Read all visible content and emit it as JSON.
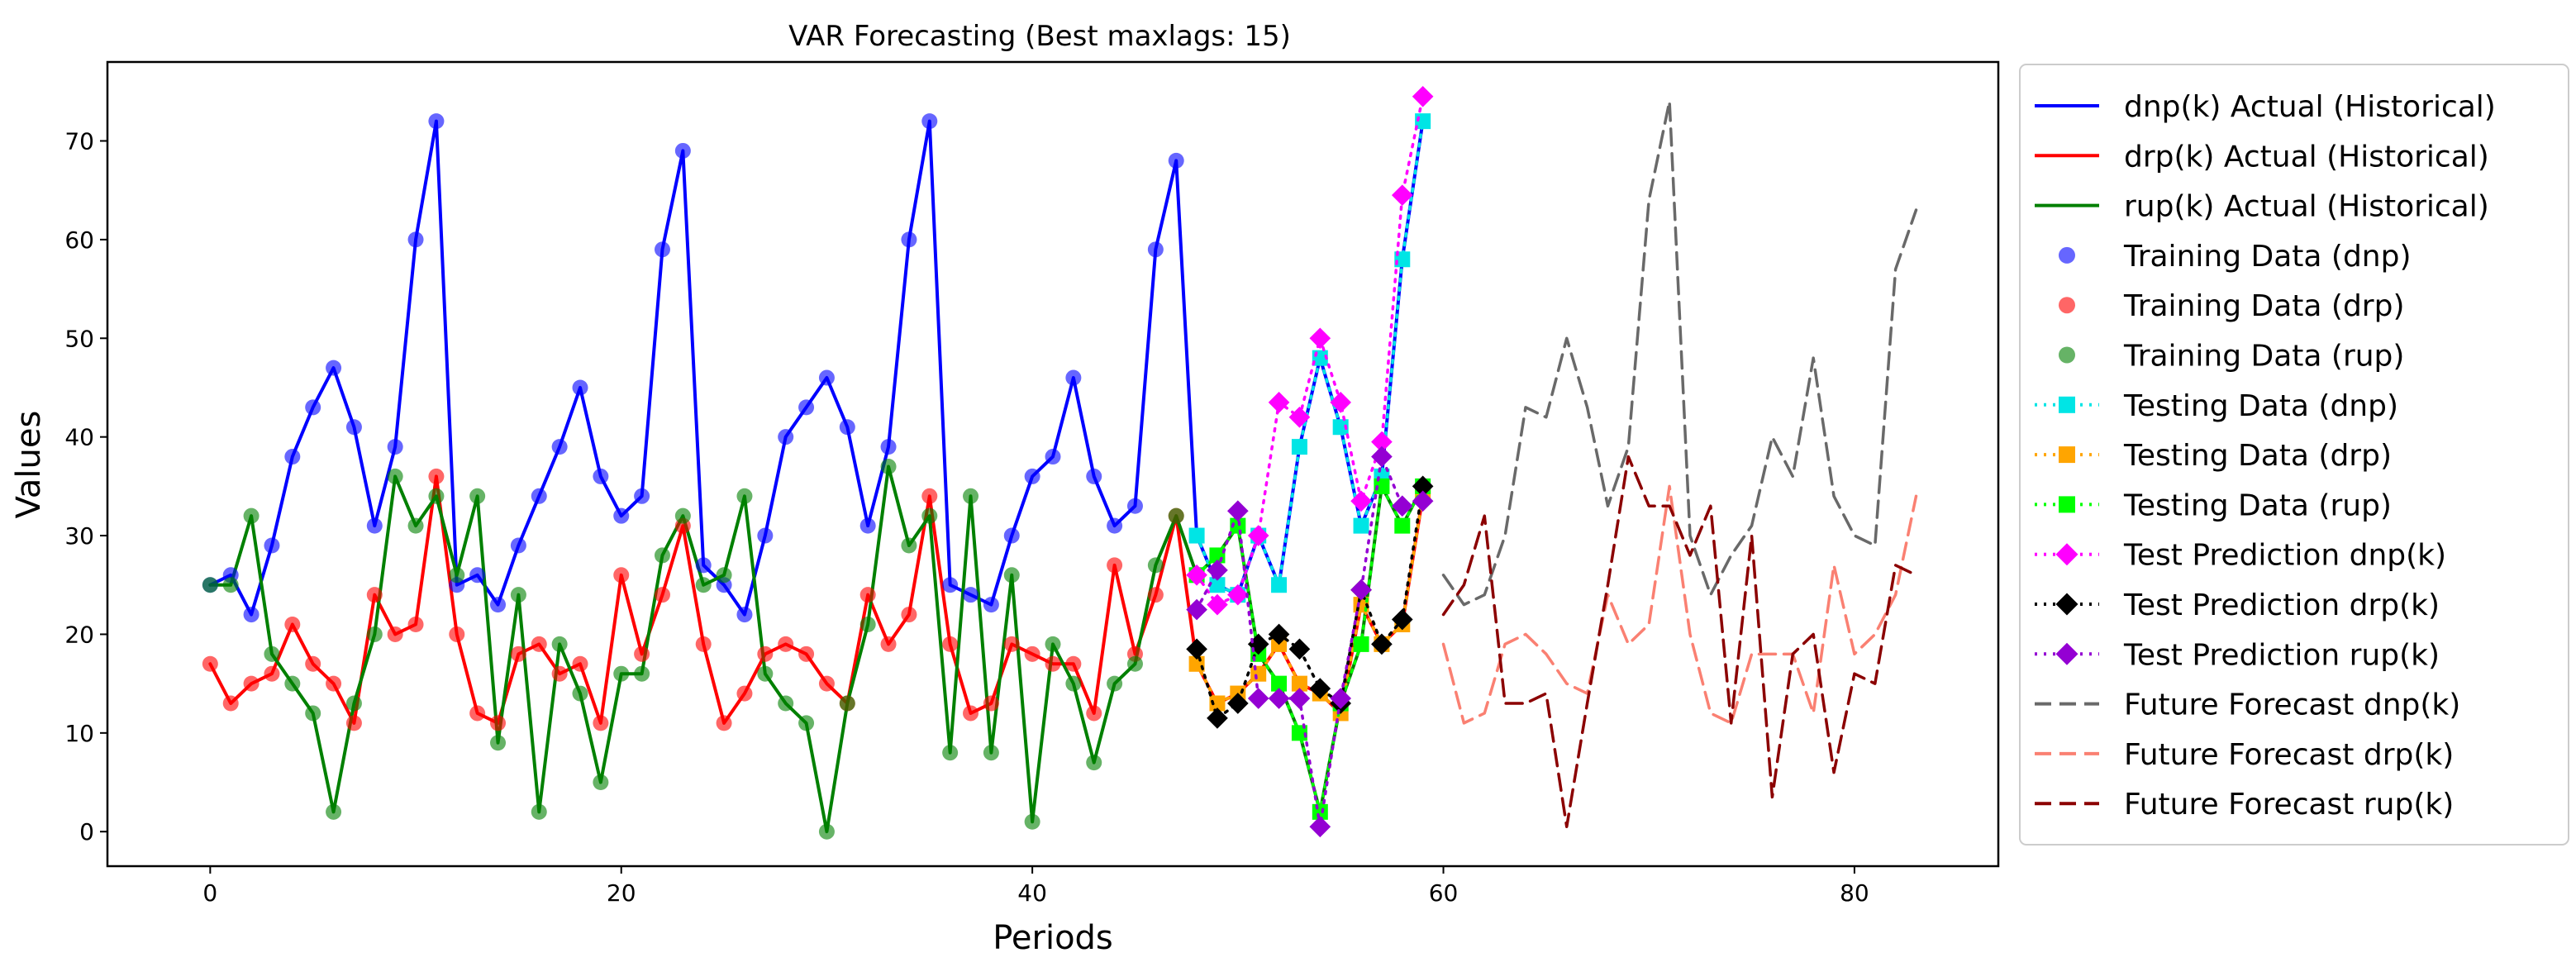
{
  "chart_data": {
    "type": "line",
    "title": "VAR Forecasting (Best maxlags: 15)",
    "xlabel": "Periods",
    "ylabel": "Values",
    "xlim": [
      -5,
      87
    ],
    "ylim": [
      -3.5,
      78
    ],
    "xticks": [
      0,
      20,
      40,
      60,
      80
    ],
    "yticks": [
      0,
      10,
      20,
      30,
      40,
      50,
      60,
      70
    ],
    "grid": false,
    "legend_position": "outside-right",
    "series": [
      {
        "name": "dnp(k) Actual (Historical)",
        "color": "#0000ff",
        "dash": "solid",
        "marker": "none",
        "x_start": 0,
        "values": [
          25,
          26,
          22,
          29,
          38,
          43,
          47,
          41,
          31,
          39,
          60,
          72,
          25,
          26,
          23,
          29,
          34,
          39,
          45,
          36,
          32,
          34,
          59,
          69,
          27,
          25,
          22,
          30,
          40,
          43,
          46,
          41,
          31,
          39,
          60,
          72,
          25,
          24,
          23,
          30,
          36,
          38,
          46,
          36,
          31,
          33,
          59,
          68,
          30,
          25,
          24,
          30,
          25,
          39,
          48,
          41,
          31,
          36,
          58,
          72
        ]
      },
      {
        "name": "drp(k) Actual (Historical)",
        "color": "#ff0000",
        "dash": "solid",
        "marker": "none",
        "x_start": 0,
        "values": [
          17,
          13,
          15,
          16,
          21,
          17,
          15,
          11,
          24,
          20,
          21,
          36,
          20,
          12,
          11,
          18,
          19,
          16,
          17,
          11,
          26,
          18,
          24,
          31,
          19,
          11,
          14,
          18,
          19,
          18,
          15,
          13,
          24,
          19,
          22,
          34,
          19,
          12,
          13,
          19,
          18,
          17,
          17,
          12,
          27,
          18,
          24,
          32,
          17,
          13,
          14,
          16,
          19,
          15,
          14,
          12,
          23,
          19,
          21,
          34
        ]
      },
      {
        "name": "rup(k) Actual (Historical)",
        "color": "#008000",
        "dash": "solid",
        "marker": "none",
        "x_start": 0,
        "values": [
          25,
          25,
          32,
          18,
          15,
          12,
          2,
          13,
          20,
          36,
          31,
          34,
          26,
          34,
          9,
          24,
          2,
          19,
          14,
          5,
          16,
          16,
          28,
          32,
          25,
          26,
          34,
          16,
          13,
          11,
          0,
          13,
          21,
          37,
          29,
          32,
          8,
          34,
          8,
          26,
          1,
          19,
          15,
          7,
          15,
          17,
          27,
          32,
          26,
          28,
          31,
          18,
          15,
          10,
          2,
          13,
          19,
          35,
          31,
          35
        ]
      },
      {
        "name": "Training Data (dnp)",
        "color": "#0000ff",
        "dash": "none",
        "marker": "circle",
        "opacity": 0.6,
        "x_start": 0,
        "values": [
          25,
          26,
          22,
          29,
          38,
          43,
          47,
          41,
          31,
          39,
          60,
          72,
          25,
          26,
          23,
          29,
          34,
          39,
          45,
          36,
          32,
          34,
          59,
          69,
          27,
          25,
          22,
          30,
          40,
          43,
          46,
          41,
          31,
          39,
          60,
          72,
          25,
          24,
          23,
          30,
          36,
          38,
          46,
          36,
          31,
          33,
          59,
          68
        ]
      },
      {
        "name": "Training Data (drp)",
        "color": "#ff0000",
        "dash": "none",
        "marker": "circle",
        "opacity": 0.6,
        "x_start": 0,
        "values": [
          17,
          13,
          15,
          16,
          21,
          17,
          15,
          11,
          24,
          20,
          21,
          36,
          20,
          12,
          11,
          18,
          19,
          16,
          17,
          11,
          26,
          18,
          24,
          31,
          19,
          11,
          14,
          18,
          19,
          18,
          15,
          13,
          24,
          19,
          22,
          34,
          19,
          12,
          13,
          19,
          18,
          17,
          17,
          12,
          27,
          18,
          24,
          32
        ]
      },
      {
        "name": "Training Data (rup)",
        "color": "#008000",
        "dash": "none",
        "marker": "circle",
        "opacity": 0.6,
        "x_start": 0,
        "values": [
          25,
          25,
          32,
          18,
          15,
          12,
          2,
          13,
          20,
          36,
          31,
          34,
          26,
          34,
          9,
          24,
          2,
          19,
          14,
          5,
          16,
          16,
          28,
          32,
          25,
          26,
          34,
          16,
          13,
          11,
          0,
          13,
          21,
          37,
          29,
          32,
          8,
          34,
          8,
          26,
          1,
          19,
          15,
          7,
          15,
          17,
          27,
          32
        ]
      },
      {
        "name": "Testing Data (dnp)",
        "color": "#00e5e5",
        "dash": "dotted",
        "marker": "square",
        "x_start": 48,
        "values": [
          30,
          25,
          24,
          30,
          25,
          39,
          48,
          41,
          31,
          36,
          58,
          72
        ]
      },
      {
        "name": "Testing Data (drp)",
        "color": "#ffa500",
        "dash": "dotted",
        "marker": "square",
        "x_start": 48,
        "values": [
          17,
          13,
          14,
          16,
          19,
          15,
          14,
          12,
          23,
          19,
          21,
          34
        ]
      },
      {
        "name": "Testing Data (rup)",
        "color": "#00ff00",
        "dash": "dotted",
        "marker": "square",
        "x_start": 48,
        "values": [
          26,
          28,
          31,
          18,
          15,
          10,
          2,
          13,
          19,
          35,
          31,
          35
        ]
      },
      {
        "name": "Test Prediction dnp(k)",
        "color": "#ff00ff",
        "dash": "dotted",
        "marker": "diamond",
        "x_start": 48,
        "values": [
          26,
          23,
          24,
          30,
          43.5,
          42,
          50,
          43.5,
          33.5,
          39.5,
          64.5,
          74.5
        ]
      },
      {
        "name": "Test Prediction drp(k)",
        "color": "#000000",
        "dash": "dotted",
        "marker": "diamond",
        "x_start": 48,
        "values": [
          18.5,
          11.5,
          13,
          19,
          20,
          18.5,
          14.5,
          13,
          24.5,
          19,
          21.5,
          35
        ]
      },
      {
        "name": "Test Prediction rup(k)",
        "color": "#9400d3",
        "dash": "dotted",
        "marker": "diamond",
        "x_start": 48,
        "values": [
          22.5,
          26.5,
          32.5,
          13.5,
          13.5,
          13.5,
          0.5,
          13.5,
          24.5,
          38,
          33,
          33.5
        ]
      },
      {
        "name": "Future Forecast dnp(k)",
        "color": "#696969",
        "dash": "dashed",
        "marker": "none",
        "x_start": 60,
        "values": [
          26,
          23,
          24,
          30,
          43,
          42,
          50,
          43,
          33,
          39,
          64,
          74,
          30,
          24,
          28,
          31,
          40,
          36,
          48,
          34,
          30,
          29,
          57,
          63
        ]
      },
      {
        "name": "Future Forecast drp(k)",
        "color": "#fa8072",
        "dash": "dashed",
        "marker": "none",
        "x_start": 60,
        "values": [
          19,
          11,
          12,
          19,
          20,
          18,
          15,
          14,
          24,
          19,
          21,
          35,
          20,
          12,
          11,
          18,
          18,
          18,
          12,
          27,
          18,
          20,
          24,
          34
        ]
      },
      {
        "name": "Future Forecast rup(k)",
        "color": "#8b0000",
        "dash": "dashed",
        "marker": "none",
        "x_start": 60,
        "values": [
          22,
          25,
          32,
          13,
          13,
          14,
          0.5,
          13,
          25,
          38,
          33,
          33,
          28,
          33,
          11,
          30,
          3.5,
          18,
          20,
          6,
          16,
          15,
          27,
          26
        ]
      }
    ]
  }
}
